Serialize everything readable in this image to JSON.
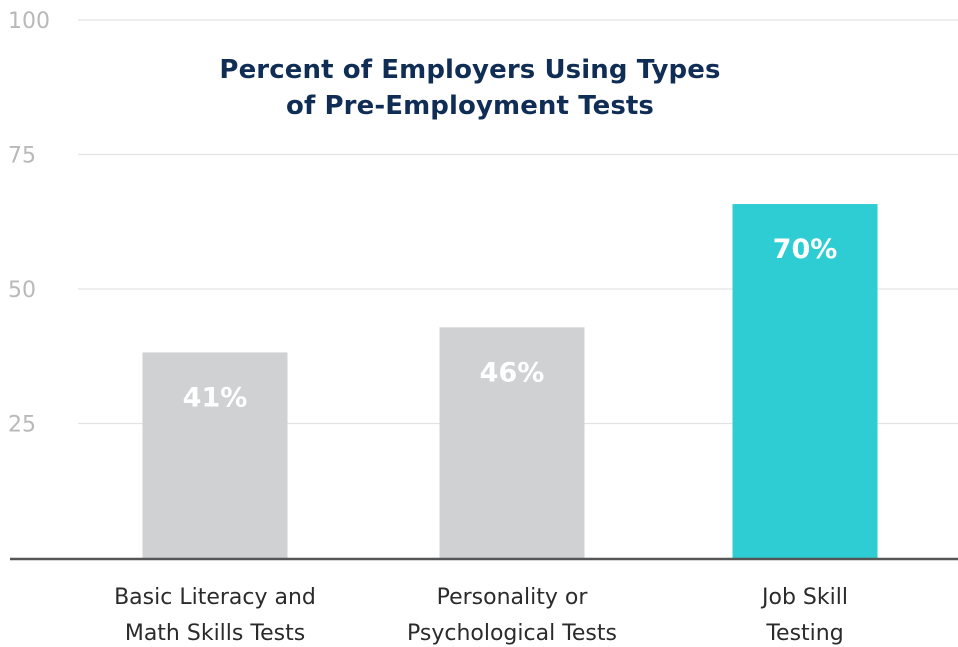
{
  "chart_data": {
    "type": "bar",
    "title": "Percent of Employers Using Types of Pre-Employment Tests",
    "title_lines": [
      "Percent of Employers Using Types",
      "of Pre-Employment Tests"
    ],
    "categories": [
      "Basic Literacy and Math Skills Tests",
      "Personality or Psychological Tests",
      "Job Skill Testing"
    ],
    "category_lines": [
      [
        "Basic Literacy and",
        "Math Skills Tests"
      ],
      [
        "Personality or",
        "Psychological Tests"
      ],
      [
        "Job Skill",
        "Testing"
      ]
    ],
    "values": [
      41,
      46,
      70
    ],
    "value_labels": [
      "41%",
      "46%",
      "70%"
    ],
    "yticks": [
      25,
      50,
      75,
      100
    ],
    "ylim": [
      0,
      100
    ],
    "xlabel": "",
    "ylabel": "",
    "grid": true,
    "colors": {
      "default_bar": "#d0d1d3",
      "highlight_bar": "#2dcdd3",
      "title": "#0f2d55",
      "grid": "#e3e3e3",
      "axis": "#555555",
      "tick_text": "#b9b9b9",
      "category_text": "#2b2b2b"
    },
    "highlight_index": 2
  }
}
